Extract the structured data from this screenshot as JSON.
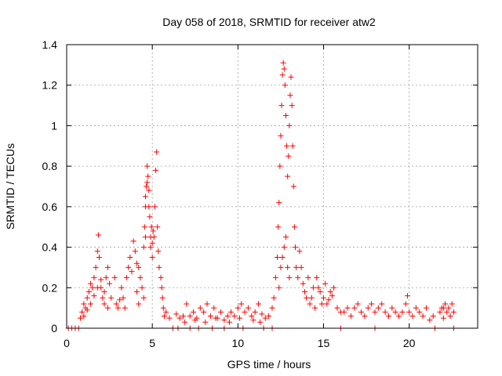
{
  "chart_data": {
    "type": "scatter",
    "title": "Day 058 of 2018, SRMTID for receiver atw2",
    "xlabel": "GPS time / hours",
    "ylabel": "SRMTID / TECUs",
    "xlim": [
      0,
      24
    ],
    "ylim": [
      0,
      1.4
    ],
    "xticks": [
      "0",
      "5",
      "10",
      "15",
      "20"
    ],
    "xtick_values": [
      0,
      5,
      10,
      15,
      20
    ],
    "yticks": [
      "0",
      "0.2",
      "0.4",
      "0.6",
      "0.8",
      "1",
      "1.2",
      "1.4"
    ],
    "ytick_values": [
      0,
      0.2,
      0.4,
      0.6,
      0.8,
      1.0,
      1.2,
      1.4
    ],
    "grid": true,
    "marker": "plus",
    "color": "#ff0000",
    "series": [
      {
        "name": "SRMTID",
        "points": [
          [
            0.1,
            0.0
          ],
          [
            0.3,
            0.0
          ],
          [
            0.5,
            0.0
          ],
          [
            0.7,
            0.0
          ],
          [
            0.8,
            0.05
          ],
          [
            0.9,
            0.08
          ],
          [
            1.0,
            0.12
          ],
          [
            1.1,
            0.1
          ],
          [
            1.2,
            0.15
          ],
          [
            1.3,
            0.18
          ],
          [
            1.4,
            0.22
          ],
          [
            1.5,
            0.2
          ],
          [
            1.6,
            0.25
          ],
          [
            1.7,
            0.3
          ],
          [
            1.8,
            0.38
          ],
          [
            1.85,
            0.46
          ],
          [
            1.9,
            0.35
          ],
          [
            2.0,
            0.2
          ],
          [
            2.1,
            0.15
          ],
          [
            2.2,
            0.18
          ],
          [
            2.3,
            0.25
          ],
          [
            2.4,
            0.3
          ],
          [
            2.5,
            0.22
          ],
          [
            2.6,
            0.15
          ],
          [
            1.0,
            0.06
          ],
          [
            1.2,
            0.09
          ],
          [
            1.4,
            0.12
          ],
          [
            1.6,
            0.16
          ],
          [
            1.8,
            0.2
          ],
          [
            2.0,
            0.24
          ],
          [
            2.2,
            0.12
          ],
          [
            2.4,
            0.1
          ],
          [
            2.8,
            0.25
          ],
          [
            2.9,
            0.12
          ],
          [
            3.0,
            0.1
          ],
          [
            3.1,
            0.14
          ],
          [
            3.2,
            0.2
          ],
          [
            3.3,
            0.15
          ],
          [
            3.4,
            0.1
          ],
          [
            3.5,
            0.25
          ],
          [
            3.6,
            0.3
          ],
          [
            3.7,
            0.35
          ],
          [
            3.8,
            0.28
          ],
          [
            3.9,
            0.43
          ],
          [
            4.0,
            0.38
          ],
          [
            4.1,
            0.32
          ],
          [
            4.2,
            0.3
          ],
          [
            4.3,
            0.25
          ],
          [
            4.4,
            0.2
          ],
          [
            4.5,
            0.15
          ],
          [
            4.2,
            0.12
          ],
          [
            4.1,
            0.18
          ],
          [
            4.5,
            0.4
          ],
          [
            4.55,
            0.5
          ],
          [
            4.6,
            0.6
          ],
          [
            4.65,
            0.7
          ],
          [
            4.7,
            0.8
          ],
          [
            4.75,
            0.75
          ],
          [
            4.8,
            0.68
          ],
          [
            4.85,
            0.55
          ],
          [
            4.9,
            0.45
          ],
          [
            4.95,
            0.5
          ],
          [
            5.0,
            0.42
          ],
          [
            5.05,
            0.48
          ],
          [
            5.1,
            0.45
          ],
          [
            5.15,
            0.6
          ],
          [
            5.2,
            0.78
          ],
          [
            5.25,
            0.87
          ],
          [
            5.3,
            0.5
          ],
          [
            5.35,
            0.38
          ],
          [
            5.4,
            0.3
          ],
          [
            5.5,
            0.25
          ],
          [
            5.55,
            0.2
          ],
          [
            5.6,
            0.15
          ],
          [
            5.65,
            0.1
          ],
          [
            5.7,
            0.06
          ],
          [
            5.8,
            0.08
          ],
          [
            6.0,
            0.05
          ],
          [
            6.2,
            0.0
          ],
          [
            4.6,
            0.65
          ],
          [
            4.7,
            0.72
          ],
          [
            4.8,
            0.6
          ],
          [
            4.9,
            0.4
          ],
          [
            5.0,
            0.35
          ],
          [
            4.6,
            0.45
          ],
          [
            6.4,
            0.07
          ],
          [
            6.6,
            0.05
          ],
          [
            6.8,
            0.06
          ],
          [
            7.0,
            0.12
          ],
          [
            7.2,
            0.06
          ],
          [
            7.4,
            0.08
          ],
          [
            7.6,
            0.05
          ],
          [
            7.8,
            0.1
          ],
          [
            8.0,
            0.08
          ],
          [
            8.2,
            0.12
          ],
          [
            8.4,
            0.06
          ],
          [
            8.6,
            0.1
          ],
          [
            8.8,
            0.05
          ],
          [
            9.0,
            0.08
          ],
          [
            9.2,
            0.04
          ],
          [
            9.4,
            0.06
          ],
          [
            9.6,
            0.08
          ],
          [
            9.8,
            0.06
          ],
          [
            10.0,
            0.1
          ],
          [
            10.2,
            0.12
          ],
          [
            10.4,
            0.08
          ],
          [
            10.6,
            0.1
          ],
          [
            10.8,
            0.06
          ],
          [
            11.0,
            0.08
          ],
          [
            11.2,
            0.12
          ],
          [
            11.4,
            0.07
          ],
          [
            11.6,
            0.05
          ],
          [
            6.5,
            0.0
          ],
          [
            7.2,
            0.0
          ],
          [
            7.7,
            0.0
          ],
          [
            8.5,
            0.0
          ],
          [
            9.2,
            0.0
          ],
          [
            10.3,
            0.0
          ],
          [
            11.5,
            0.0
          ],
          [
            12.0,
            0.0
          ],
          [
            6.9,
            0.03
          ],
          [
            7.5,
            0.04
          ],
          [
            8.1,
            0.03
          ],
          [
            8.7,
            0.05
          ],
          [
            9.5,
            0.03
          ],
          [
            10.1,
            0.05
          ],
          [
            10.9,
            0.04
          ],
          [
            11.3,
            0.03
          ],
          [
            11.8,
            0.06
          ],
          [
            12.0,
            0.1
          ],
          [
            12.1,
            0.15
          ],
          [
            12.2,
            0.25
          ],
          [
            12.3,
            0.35
          ],
          [
            12.35,
            0.5
          ],
          [
            12.4,
            0.62
          ],
          [
            12.45,
            0.8
          ],
          [
            12.5,
            0.95
          ],
          [
            12.55,
            1.1
          ],
          [
            12.6,
            1.25
          ],
          [
            12.65,
            1.31
          ],
          [
            12.7,
            1.28
          ],
          [
            12.75,
            1.2
          ],
          [
            12.8,
            1.05
          ],
          [
            12.85,
            0.9
          ],
          [
            12.9,
            0.75
          ],
          [
            12.95,
            0.85
          ],
          [
            13.0,
            1.0
          ],
          [
            13.05,
            1.15
          ],
          [
            13.1,
            1.24
          ],
          [
            13.15,
            1.1
          ],
          [
            13.2,
            0.9
          ],
          [
            13.25,
            0.7
          ],
          [
            13.3,
            0.5
          ],
          [
            13.35,
            0.4
          ],
          [
            13.4,
            0.3
          ],
          [
            13.5,
            0.25
          ],
          [
            13.6,
            0.38
          ],
          [
            13.7,
            0.3
          ],
          [
            13.8,
            0.22
          ],
          [
            12.5,
            0.3
          ],
          [
            12.6,
            0.35
          ],
          [
            12.7,
            0.4
          ],
          [
            12.8,
            0.45
          ],
          [
            12.9,
            0.3
          ],
          [
            13.0,
            0.25
          ],
          [
            12.4,
            0.2
          ],
          [
            13.9,
            0.18
          ],
          [
            14.0,
            0.15
          ],
          [
            14.2,
            0.12
          ],
          [
            14.4,
            0.2
          ],
          [
            14.6,
            0.25
          ],
          [
            14.8,
            0.18
          ],
          [
            15.0,
            0.15
          ],
          [
            15.2,
            0.12
          ],
          [
            15.4,
            0.18
          ],
          [
            15.6,
            0.2
          ],
          [
            15.8,
            0.1
          ],
          [
            16.0,
            0.08
          ],
          [
            14.1,
            0.25
          ],
          [
            14.3,
            0.15
          ],
          [
            14.5,
            0.1
          ],
          [
            14.7,
            0.2
          ],
          [
            14.9,
            0.12
          ],
          [
            15.1,
            0.22
          ],
          [
            15.3,
            0.14
          ],
          [
            15.5,
            0.16
          ],
          [
            16.2,
            0.08
          ],
          [
            16.4,
            0.1
          ],
          [
            16.6,
            0.06
          ],
          [
            16.8,
            0.1
          ],
          [
            17.0,
            0.12
          ],
          [
            17.2,
            0.08
          ],
          [
            17.4,
            0.06
          ],
          [
            17.6,
            0.1
          ],
          [
            17.8,
            0.12
          ],
          [
            18.0,
            0.08
          ],
          [
            18.2,
            0.1
          ],
          [
            18.4,
            0.12
          ],
          [
            18.6,
            0.08
          ],
          [
            18.8,
            0.06
          ],
          [
            19.0,
            0.1
          ],
          [
            19.2,
            0.08
          ],
          [
            19.4,
            0.06
          ],
          [
            19.6,
            0.08
          ],
          [
            19.8,
            0.12
          ],
          [
            19.9,
            0.16
          ],
          [
            20.0,
            0.08
          ],
          [
            20.2,
            0.06
          ],
          [
            20.4,
            0.1
          ],
          [
            20.6,
            0.08
          ],
          [
            20.8,
            0.06
          ],
          [
            21.0,
            0.1
          ],
          [
            21.2,
            0.04
          ],
          [
            21.4,
            0.06
          ],
          [
            16.0,
            0.0
          ],
          [
            18.0,
            0.0
          ],
          [
            21.5,
            0.0
          ],
          [
            22.6,
            0.0
          ],
          [
            21.8,
            0.08
          ],
          [
            21.9,
            0.1
          ],
          [
            22.0,
            0.05
          ],
          [
            22.1,
            0.12
          ],
          [
            22.2,
            0.08
          ],
          [
            22.3,
            0.1
          ],
          [
            22.4,
            0.06
          ],
          [
            22.5,
            0.12
          ],
          [
            22.6,
            0.08
          ],
          [
            22.0,
            0.1
          ]
        ]
      }
    ]
  }
}
